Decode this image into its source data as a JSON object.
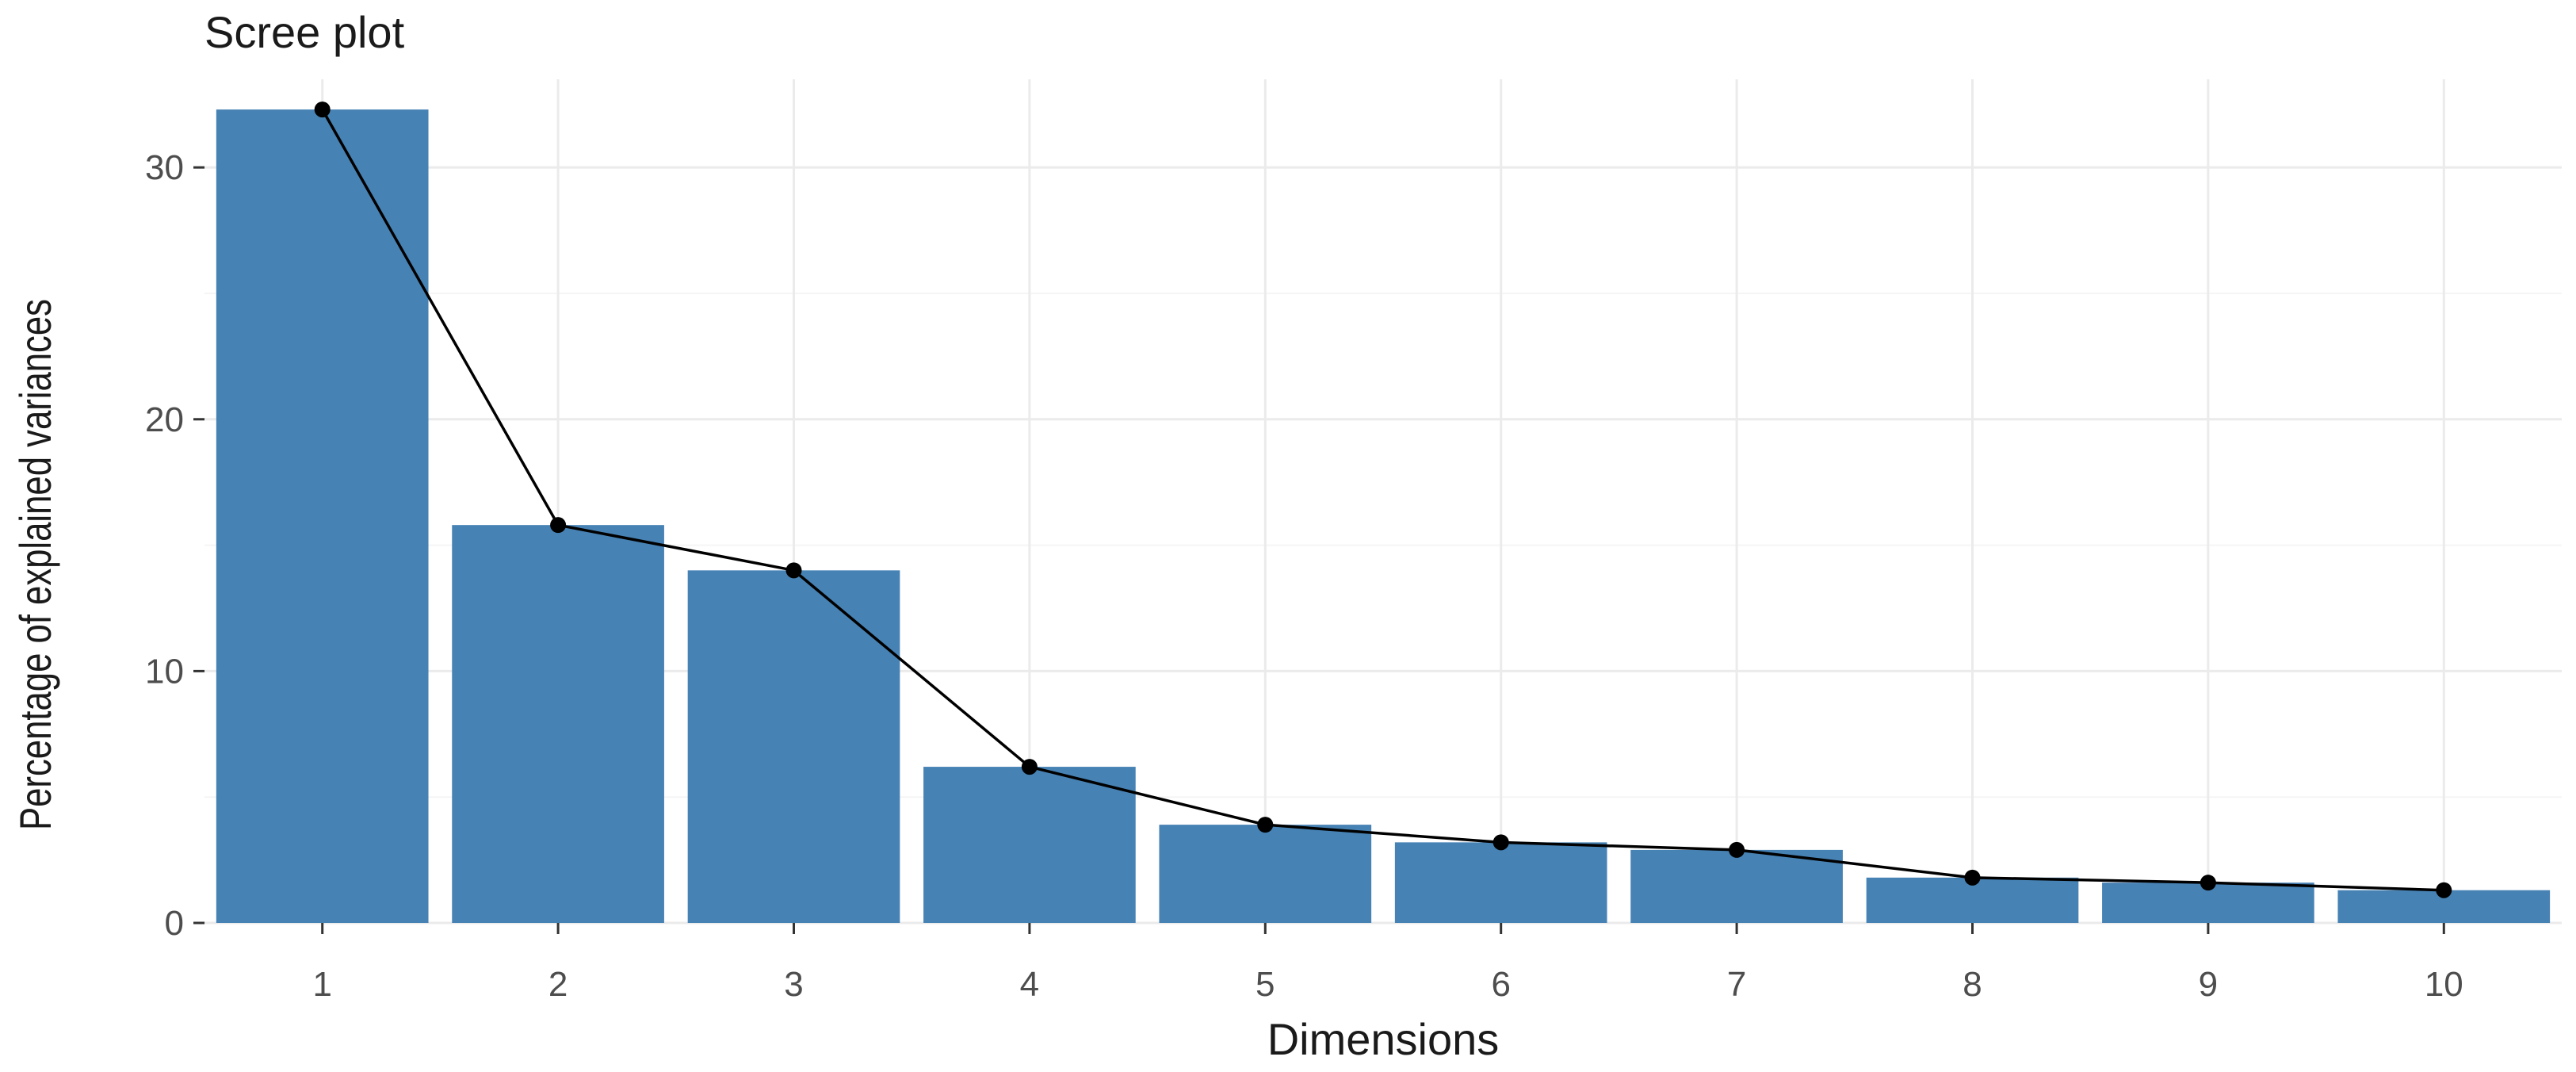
{
  "chart_data": {
    "type": "bar",
    "title": "Scree plot",
    "xlabel": "Dimensions",
    "ylabel": "Percentage of explained variances",
    "categories": [
      "1",
      "2",
      "3",
      "4",
      "5",
      "6",
      "7",
      "8",
      "9",
      "10"
    ],
    "values": [
      32.3,
      15.8,
      14.0,
      6.2,
      3.9,
      3.2,
      2.9,
      1.8,
      1.6,
      1.3
    ],
    "line_overlay": true,
    "ylim": [
      0,
      33.5
    ],
    "yticks": [
      0,
      10,
      20,
      30
    ],
    "grid": true,
    "legend": "none",
    "colors": {
      "bar": "#4682B4",
      "line": "#000000",
      "point": "#000000",
      "grid_major": "#ebebeb",
      "grid_minor": "#f5f5f5"
    }
  }
}
